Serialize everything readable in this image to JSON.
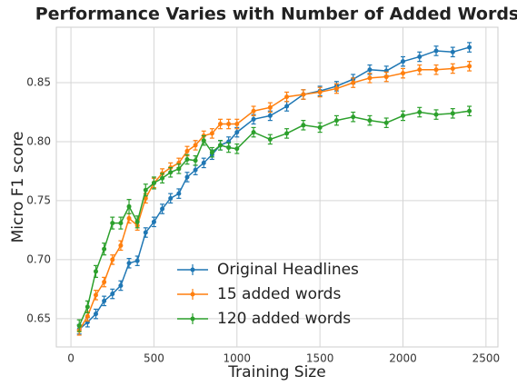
{
  "chart_data": {
    "type": "line",
    "title": "Performance Varies with Number of Added Words",
    "xlabel": "Training Size",
    "ylabel": "Micro F1 score",
    "x": [
      50,
      100,
      150,
      200,
      250,
      300,
      350,
      400,
      450,
      500,
      550,
      600,
      650,
      700,
      750,
      800,
      850,
      900,
      950,
      1000,
      1100,
      1200,
      1300,
      1400,
      1500,
      1600,
      1700,
      1800,
      1900,
      2000,
      2100,
      2200,
      2300,
      2400
    ],
    "series": [
      {
        "name": "Original Headlines",
        "color": "#1f77b4",
        "values": [
          0.641,
          0.647,
          0.654,
          0.665,
          0.671,
          0.678,
          0.697,
          0.699,
          0.723,
          0.732,
          0.743,
          0.752,
          0.756,
          0.77,
          0.776,
          0.782,
          0.789,
          0.797,
          0.8,
          0.808,
          0.819,
          0.822,
          0.83,
          0.84,
          0.843,
          0.847,
          0.853,
          0.861,
          0.86,
          0.868,
          0.872,
          0.877,
          0.876,
          0.88
        ],
        "errors": [
          0.004,
          0.004,
          0.004,
          0.004,
          0.004,
          0.004,
          0.004,
          0.004,
          0.004,
          0.004,
          0.004,
          0.004,
          0.004,
          0.004,
          0.004,
          0.004,
          0.004,
          0.004,
          0.004,
          0.004,
          0.004,
          0.004,
          0.004,
          0.004,
          0.004,
          0.004,
          0.004,
          0.004,
          0.004,
          0.004,
          0.004,
          0.004,
          0.004,
          0.004
        ]
      },
      {
        "name": "15 added words",
        "color": "#ff7f0e",
        "values": [
          0.64,
          0.652,
          0.67,
          0.681,
          0.7,
          0.712,
          0.735,
          0.729,
          0.752,
          0.765,
          0.773,
          0.778,
          0.782,
          0.792,
          0.797,
          0.805,
          0.807,
          0.815,
          0.815,
          0.815,
          0.826,
          0.829,
          0.838,
          0.84,
          0.842,
          0.845,
          0.85,
          0.854,
          0.855,
          0.858,
          0.861,
          0.861,
          0.862,
          0.864
        ],
        "errors": [
          0.004,
          0.004,
          0.004,
          0.004,
          0.004,
          0.004,
          0.004,
          0.004,
          0.004,
          0.004,
          0.004,
          0.004,
          0.004,
          0.004,
          0.004,
          0.004,
          0.004,
          0.004,
          0.004,
          0.004,
          0.004,
          0.004,
          0.004,
          0.004,
          0.004,
          0.004,
          0.004,
          0.004,
          0.004,
          0.004,
          0.004,
          0.004,
          0.004,
          0.004
        ]
      },
      {
        "name": "120 added words",
        "color": "#2ca02c",
        "values": [
          0.644,
          0.66,
          0.69,
          0.709,
          0.731,
          0.731,
          0.745,
          0.732,
          0.759,
          0.765,
          0.769,
          0.774,
          0.777,
          0.785,
          0.784,
          0.801,
          0.791,
          0.797,
          0.795,
          0.794,
          0.808,
          0.802,
          0.807,
          0.814,
          0.812,
          0.818,
          0.821,
          0.818,
          0.816,
          0.822,
          0.825,
          0.823,
          0.824,
          0.826
        ],
        "errors": [
          0.005,
          0.005,
          0.005,
          0.005,
          0.005,
          0.005,
          0.006,
          0.005,
          0.005,
          0.005,
          0.004,
          0.004,
          0.004,
          0.004,
          0.004,
          0.004,
          0.004,
          0.004,
          0.004,
          0.004,
          0.004,
          0.004,
          0.004,
          0.004,
          0.004,
          0.004,
          0.004,
          0.004,
          0.004,
          0.004,
          0.004,
          0.004,
          0.004,
          0.004
        ]
      }
    ],
    "xlim": [
      -88,
      2572
    ],
    "ylim": [
      0.626,
      0.897
    ],
    "xticks": [
      0,
      500,
      1000,
      1500,
      2000,
      2500
    ],
    "yticks": [
      0.65,
      {
        "value": 0.7,
        "label": "0.70"
      },
      0.75,
      {
        "value": 0.8,
        "label": "0.80"
      },
      0.85
    ],
    "grid": true,
    "legend": "lower center"
  }
}
